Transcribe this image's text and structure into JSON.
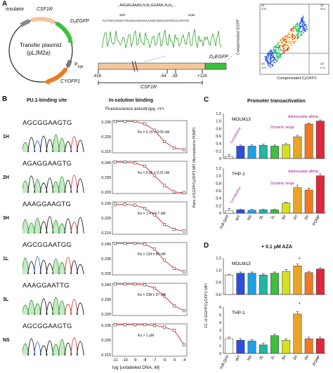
{
  "panelA": {
    "letter": "A",
    "insulator": "insulator",
    "csf1r_top": "CSF1R",
    "d2egfp_label": "D₂EGFP",
    "plasmid_line1": "Transfer plasmid",
    "plasmid_line2": "(pLJM2a)",
    "ppgk": "P",
    "ppgk_sub": "pgk",
    "cyofp1": "CYOFP1",
    "seq_top": "...AAGAGAAAN₁N₂N₃GGAAN₄N₅N₆...",
    "sbfi": "SbfI",
    "ndei": "NdeI",
    "seq_read": "CCTGCAGGCTGAGAAGAGAAAGCGGAAGTGCCATATG",
    "pos_left": "-416",
    "pos_m54": "-54",
    "pos_m38": "-38",
    "pos_right": "+124",
    "csf1r_bottom": "CSF1R",
    "d2egfp_bar": "D₂EGFP",
    "flow": {
      "ylabel": "Compensated EGFP",
      "xlabel": "Compensated CyOFP1",
      "q1": "Q1",
      "q2": "Q2",
      "q3": "Q3",
      "q4": "Q4",
      "q1v": "0.33",
      "q2v": "93.8",
      "q3v": "5.72",
      "q4v": "0.10"
    }
  },
  "panelB": {
    "letter": "B",
    "col1": "PU.1-binding site",
    "col2": "In-solution binding",
    "subhead": "Fluorescence anisotropy, <r>",
    "xlabel": "log [unlabeled DNA, M]",
    "xticks": [
      "-11",
      "-10",
      "-9",
      "-8",
      "-7",
      "-6",
      "-5",
      "-4"
    ],
    "rows": [
      {
        "name": "1H",
        "seq": "AGCGGAAGTG",
        "kd": "Kᴅ = 0.15 ± 0.09 nM",
        "yticks": [
          "0.235",
          "0.225",
          "0.215"
        ]
      },
      {
        "name": "2H",
        "seq": "AGAGGAAGTG",
        "kd": "Kᴅ = 0.55 ± 0.31 nM",
        "yticks": [
          "0.240",
          "0.230",
          "0.220"
        ]
      },
      {
        "name": "3H",
        "seq": "AAAGGAAGTG",
        "kd": "Kᴅ = 1.4 ± 0.7 nM",
        "yticks": [
          "0.235",
          "0.225",
          "0.215"
        ]
      },
      {
        "name": "1L",
        "seq": "AGCGGAATGG",
        "kd": "Kᴅ = 134 ± 80 nM",
        "yticks": [
          "0.245",
          "0.235",
          "0.225"
        ]
      },
      {
        "name": "3L",
        "seq": "AAAGGAATTG",
        "kd": "Kᴅ = 338 ± 97 nM",
        "yticks": [
          "0.240",
          "0.230",
          "0.220"
        ]
      },
      {
        "name": "NS",
        "seq": "AGCGGAAGTG",
        "kd": "Kᴅ > 1 μM",
        "yticks": [
          "0.235",
          "0.225",
          "0.215"
        ]
      }
    ]
  },
  "panelC": {
    "letter": "C",
    "title": "Promoter transactivation",
    "ylabel": "Ratio of EGFP/CyOFP1 MFI (Normalized to POMP)",
    "addressable": "Addressable affinity",
    "dynamic": "Dynamic range",
    "constitutive": "Constitutive",
    "categories": [
      "null-GFP",
      "WT",
      "NS",
      "3L",
      "1L",
      "3H",
      "1H",
      "2H",
      "POMP"
    ],
    "colors": [
      "#ffffff",
      "#2b50e0",
      "#1e9fe6",
      "#22b7a0",
      "#3fbf3f",
      "#d4e021",
      "#e9a52a",
      "#f07a21",
      "#e0283a"
    ],
    "cell1": "MOLM13",
    "cell2": "THP-1",
    "yticks": [
      "1.2",
      "1.0",
      "0.8",
      "0.6",
      "0.4",
      "0.2",
      "0"
    ]
  },
  "panelD": {
    "letter": "D",
    "title": "+ 0.1 μM AZA",
    "ylabel": "FC of EGFP/CyOFP1 MFI",
    "cell1": "MOLM13",
    "cell2": "THP-1",
    "star": "*",
    "yticks1": [
      "1.2",
      "1.0",
      "0.8",
      "0.6"
    ],
    "yticks2": [
      "6",
      "5",
      "4",
      "3",
      "2",
      "1",
      "0"
    ]
  },
  "chart_data": [
    {
      "type": "bar",
      "title": "Promoter transactivation",
      "ylabel": "Ratio of EGFP/CyOFP1 MFI (Normalized to POMP)",
      "categories": [
        "null-GFP",
        "WT",
        "NS",
        "3L",
        "1L",
        "3H",
        "1H",
        "2H",
        "POMP"
      ],
      "series": [
        {
          "name": "MOLM13",
          "values": [
            0.05,
            0.33,
            0.33,
            0.35,
            0.33,
            0.37,
            0.58,
            0.92,
            1.0
          ],
          "errors": [
            0.05,
            0.03,
            0.03,
            0.03,
            0.03,
            0.04,
            0.04,
            0.03,
            0.03
          ]
        },
        {
          "name": "THP-1",
          "values": [
            0.07,
            0.09,
            0.08,
            0.09,
            0.09,
            0.27,
            0.68,
            0.62,
            1.0
          ],
          "errors": [
            0.05,
            0.02,
            0.02,
            0.02,
            0.02,
            0.02,
            0.07,
            0.05,
            0.05
          ]
        }
      ],
      "ylim": [
        0,
        1.2
      ]
    },
    {
      "type": "bar",
      "title": "+ 0.1 μM AZA",
      "ylabel": "FC of EGFP/CyOFP1 MFI",
      "categories": [
        "null-GFP",
        "WT",
        "NS",
        "3L",
        "1L",
        "3H",
        "1H",
        "2H",
        "POMP"
      ],
      "series": [
        {
          "name": "MOLM13",
          "values": [
            0.92,
            0.95,
            0.95,
            0.92,
            0.95,
            0.98,
            1.07,
            0.96,
            1.02
          ],
          "errors": [
            0.01,
            0.02,
            0.02,
            0.02,
            0.02,
            0.03,
            0.03,
            0.02,
            0.02
          ],
          "ylim": [
            0.6,
            1.2
          ]
        },
        {
          "name": "THP-1",
          "values": [
            1.9,
            1.7,
            1.6,
            1.1,
            2.3,
            1.7,
            5.1,
            1.9,
            1.9
          ],
          "errors": [
            0.2,
            0.2,
            0.2,
            0.2,
            0.2,
            0.2,
            0.3,
            0.2,
            0.2
          ],
          "ylim": [
            0,
            6
          ]
        }
      ]
    },
    {
      "type": "scatter",
      "xlabel": "log [unlabeled DNA, M]",
      "xlim": [
        -11,
        -4
      ],
      "series": [
        {
          "name": "1H",
          "y": [
            0.2345,
            0.2345,
            0.2345,
            0.233,
            0.229,
            0.222,
            0.218,
            0.217
          ],
          "ylim": [
            0.215,
            0.235
          ]
        },
        {
          "name": "2H",
          "y": [
            0.2395,
            0.2395,
            0.239,
            0.237,
            0.231,
            0.225,
            0.221,
            0.2205
          ],
          "ylim": [
            0.22,
            0.24
          ]
        },
        {
          "name": "3H",
          "y": [
            0.2335,
            0.2335,
            0.233,
            0.231,
            0.227,
            0.221,
            0.218,
            0.217
          ],
          "ylim": [
            0.215,
            0.235
          ]
        },
        {
          "name": "1L",
          "y": [
            0.2445,
            0.2445,
            0.2445,
            0.244,
            0.241,
            0.234,
            0.229,
            0.227
          ],
          "ylim": [
            0.225,
            0.245
          ]
        },
        {
          "name": "3L",
          "y": [
            0.2395,
            0.2395,
            0.2395,
            0.239,
            0.237,
            0.232,
            0.226,
            0.223
          ],
          "ylim": [
            0.22,
            0.24
          ]
        },
        {
          "name": "NS",
          "y": [
            0.2345,
            0.2345,
            0.2345,
            0.2345,
            0.234,
            0.233,
            0.231,
            0.222
          ],
          "ylim": [
            0.215,
            0.235
          ]
        }
      ]
    }
  ]
}
